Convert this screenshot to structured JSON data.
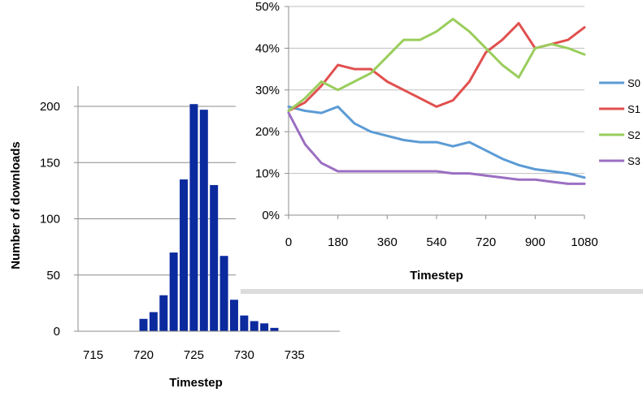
{
  "chart_data": [
    {
      "type": "bar",
      "xlabel": "Timestep",
      "ylabel": "Number of downloads",
      "xlim": [
        713.5,
        739.5
      ],
      "ylim": [
        0,
        200
      ],
      "x_ticks": [
        "715",
        "720",
        "725",
        "730",
        "735"
      ],
      "y_ticks": [
        "0",
        "50",
        "100",
        "150",
        "200"
      ],
      "grid": "horizontal",
      "color": "#0b2a9e",
      "x": [
        720,
        721,
        722,
        723,
        724,
        725,
        726,
        727,
        728,
        729,
        730,
        731,
        732,
        733
      ],
      "values": [
        11,
        17,
        32,
        70,
        135,
        202,
        197,
        130,
        67,
        28,
        14,
        9,
        7,
        3
      ]
    },
    {
      "type": "line",
      "xlabel": "Timestep",
      "ylabel": "",
      "xlim": [
        0,
        1080
      ],
      "ylim": [
        0,
        50
      ],
      "x_ticks": [
        "0",
        "180",
        "360",
        "540",
        "720",
        "900",
        "1080"
      ],
      "y_ticks": [
        "0%",
        "10%",
        "20%",
        "30%",
        "40%",
        "50%"
      ],
      "grid": "horizontal",
      "legend": "right",
      "x": [
        0,
        60,
        120,
        180,
        240,
        300,
        360,
        420,
        480,
        540,
        600,
        660,
        720,
        780,
        840,
        900,
        960,
        1020,
        1080
      ],
      "series": [
        {
          "name": "S0",
          "color": "#5b9bd5",
          "values": [
            26,
            25,
            24.5,
            26,
            22,
            20,
            19,
            18,
            17.5,
            17.5,
            16.5,
            17.5,
            15.5,
            13.5,
            12,
            11,
            10.5,
            10,
            9
          ]
        },
        {
          "name": "S1",
          "color": "#e0504e",
          "values": [
            25,
            27,
            31,
            36,
            35,
            35,
            32,
            30,
            28,
            26,
            27.5,
            32,
            39,
            42,
            46,
            40,
            41,
            42,
            45
          ]
        },
        {
          "name": "S2",
          "color": "#9acd5c",
          "values": [
            25,
            28,
            32,
            30,
            32,
            34,
            38,
            42,
            42,
            44,
            47,
            44,
            40,
            36,
            33,
            40,
            41,
            40,
            38.5
          ]
        },
        {
          "name": "S3",
          "color": "#9b6fc2",
          "values": [
            24.5,
            17,
            12.5,
            10.5,
            10.5,
            10.5,
            10.5,
            10.5,
            10.5,
            10.5,
            10,
            10,
            9.5,
            9,
            8.5,
            8.5,
            8,
            7.5,
            7.5
          ]
        }
      ]
    }
  ]
}
